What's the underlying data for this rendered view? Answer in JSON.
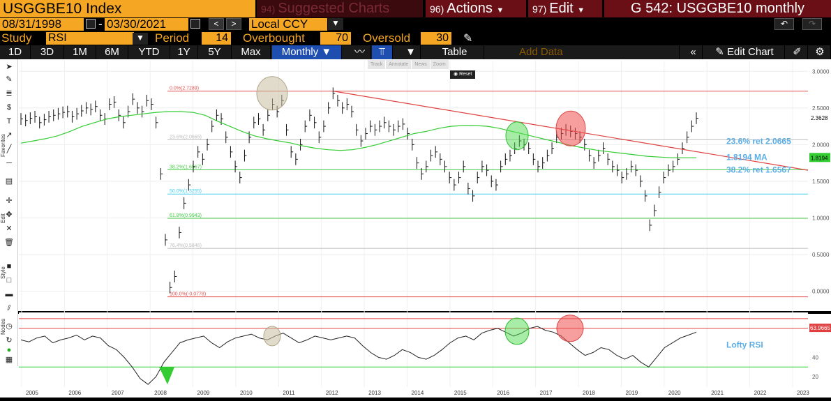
{
  "header": {
    "ticker": "USGGBE10 Index",
    "tabs": [
      {
        "num": "94)",
        "label": "Suggested Charts"
      },
      {
        "num": "96)",
        "label": "Actions"
      },
      {
        "num": "97)",
        "label": "Edit"
      }
    ],
    "graph_id": "G 542: USGGBE10 monthly"
  },
  "dates": {
    "start": "08/31/1998",
    "sep": "-",
    "end": "03/30/2021",
    "currency": "Local CCY"
  },
  "study": {
    "study_label": "Study",
    "study_value": "RSI",
    "period_label": "Period",
    "period_value": "14",
    "ob_label": "Overbought",
    "ob_value": "70",
    "os_label": "Oversold",
    "os_value": "30"
  },
  "toolbar": {
    "ranges": [
      "1D",
      "3D",
      "1M",
      "6M",
      "YTD",
      "1Y",
      "5Y",
      "Max"
    ],
    "frequency": "Monthly",
    "table_label": "Table",
    "add_data_placeholder": "Add Data",
    "edit_chart_label": "Edit Chart"
  },
  "mini_tools": {
    "track": "Track",
    "annotate": "Annotate",
    "news": "News",
    "zoom": "Zoom",
    "reset": "Reset"
  },
  "side_labels": {
    "favorites": "Favorites",
    "edit": "Edit",
    "style": "Style",
    "nodes": "Nodes"
  },
  "chart_data": {
    "type": "line",
    "x": [
      "2005",
      "2006",
      "2007",
      "2008",
      "2009",
      "2010",
      "2011",
      "2012",
      "2013",
      "2014",
      "2015",
      "2016",
      "2017",
      "2018",
      "2019",
      "2020",
      "2021",
      "2022",
      "2023"
    ],
    "price_yaxis": [
      "3.0000",
      "2.5000",
      "2.0000",
      "1.5000",
      "1.0000",
      "0.5000",
      "0.0000"
    ],
    "rsi_yaxis": [
      "40",
      "20"
    ],
    "ylim": [
      -0.1,
      3.05
    ],
    "fib_levels": [
      {
        "label": "0.0%(2.7289)",
        "value": 2.7289,
        "color": "#e05050"
      },
      {
        "label": "23.6%(2.0665)",
        "value": 2.0665,
        "color": "#bbbbbb"
      },
      {
        "label": "38.2%(1.6567)",
        "value": 1.6567,
        "color": "#44cc44"
      },
      {
        "label": "50.0%(1.3255)",
        "value": 1.3255,
        "color": "#44ccee"
      },
      {
        "label": "61.8%(0.9943)",
        "value": 0.9943,
        "color": "#44cc44"
      },
      {
        "label": "76.4%(0.5846)",
        "value": 0.5846,
        "color": "#bbbbbb"
      },
      {
        "label": "100.0%(-0.0778)",
        "value": -0.0778,
        "color": "#e05050"
      }
    ],
    "last_price": "2.3628",
    "ma_value": "1.8194",
    "rsi_last": "63.9665",
    "annotations": [
      "23.6% ret 2.0665",
      "1.8194 MA",
      "38.2% ret 1.6567",
      "Lofty RSI"
    ],
    "price_series": [
      2.35,
      2.33,
      2.36,
      2.38,
      2.3,
      2.34,
      2.38,
      2.4,
      2.42,
      2.44,
      2.45,
      2.38,
      2.42,
      2.46,
      2.5,
      2.48,
      2.52,
      2.4,
      2.35,
      2.55,
      2.58,
      2.4,
      2.3,
      2.45,
      2.62,
      2.5,
      2.45,
      2.6,
      2.55,
      2.3,
      1.6,
      0.7,
      0.05,
      0.2,
      0.8,
      1.2,
      1.45,
      1.7,
      1.9,
      1.8,
      2.0,
      2.25,
      2.4,
      2.35,
      2.1,
      1.9,
      1.7,
      1.55,
      1.85,
      2.1,
      2.3,
      2.35,
      2.2,
      2.4,
      2.55,
      2.45,
      2.6,
      2.2,
      1.9,
      1.8,
      2.0,
      2.25,
      2.4,
      2.3,
      2.1,
      2.25,
      2.5,
      2.7,
      2.6,
      2.5,
      2.55,
      2.45,
      2.2,
      2.05,
      2.15,
      2.25,
      2.2,
      2.25,
      2.3,
      2.25,
      2.2,
      2.25,
      2.28,
      2.15,
      2.0,
      1.75,
      1.6,
      1.7,
      1.85,
      1.9,
      1.8,
      1.7,
      1.55,
      1.45,
      1.55,
      1.7,
      1.4,
      1.3,
      1.55,
      1.7,
      1.65,
      1.5,
      1.45,
      1.7,
      1.8,
      1.85,
      1.95,
      2.05,
      2.0,
      1.95,
      1.8,
      1.7,
      1.75,
      1.85,
      1.95,
      2.1,
      2.15,
      2.2,
      2.18,
      2.15,
      2.1,
      2.0,
      1.85,
      1.75,
      1.85,
      1.95,
      1.8,
      1.7,
      1.65,
      1.55,
      1.6,
      1.7,
      1.65,
      1.5,
      1.3,
      0.9,
      1.1,
      1.35,
      1.55,
      1.65,
      1.7,
      1.8,
      1.95,
      2.1,
      2.25,
      2.36
    ],
    "ma_series": [
      2.02,
      2.05,
      2.08,
      2.12,
      2.18,
      2.25,
      2.3,
      2.35,
      2.38,
      2.4,
      2.42,
      2.44,
      2.45,
      2.45,
      2.44,
      2.4,
      2.32,
      2.25,
      2.18,
      2.12,
      2.08,
      2.05,
      2.02,
      1.98,
      1.95,
      1.93,
      1.92,
      1.93,
      1.96,
      2.0,
      2.05,
      2.1,
      2.15,
      2.18,
      2.22,
      2.25,
      2.26,
      2.26,
      2.25,
      2.22,
      2.18,
      2.14,
      2.1,
      2.06,
      2.02,
      1.98,
      1.95,
      1.92,
      1.9,
      1.88,
      1.86,
      1.84,
      1.83,
      1.82,
      1.82,
      1.82
    ],
    "rsi_series": [
      58,
      56,
      60,
      62,
      55,
      58,
      60,
      63,
      58,
      62,
      60,
      52,
      48,
      40,
      30,
      18,
      12,
      20,
      35,
      45,
      55,
      58,
      60,
      62,
      55,
      50,
      56,
      60,
      62,
      64,
      60,
      58,
      62,
      65,
      60,
      55,
      58,
      62,
      60,
      58,
      60,
      62,
      60,
      52,
      45,
      40,
      38,
      42,
      48,
      45,
      40,
      38,
      42,
      48,
      55,
      60,
      62,
      58,
      65,
      68,
      70,
      66,
      62,
      65,
      70,
      72,
      68,
      66,
      62,
      55,
      48,
      42,
      45,
      50,
      48,
      42,
      38,
      42,
      35,
      30,
      40,
      50,
      55,
      60,
      63,
      66
    ]
  }
}
